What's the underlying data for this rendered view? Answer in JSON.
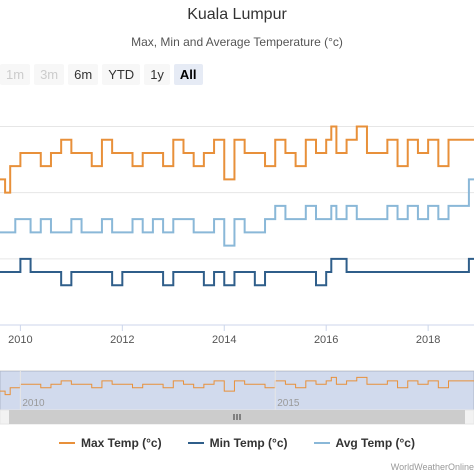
{
  "title": "Kuala Lumpur",
  "subtitle": "Max, Min and Average Temperature (°c)",
  "range_selector": {
    "buttons": [
      {
        "label": "1m",
        "state": "disabled"
      },
      {
        "label": "3m",
        "state": "disabled"
      },
      {
        "label": "6m",
        "state": "normal"
      },
      {
        "label": "YTD",
        "state": "normal"
      },
      {
        "label": "1y",
        "state": "normal"
      },
      {
        "label": "All",
        "state": "selected"
      }
    ]
  },
  "navigator": {
    "labels": [
      "2010",
      "2015"
    ]
  },
  "credit": "WorldWeatherOnline",
  "chart_data": {
    "type": "line",
    "title": "Kuala Lumpur",
    "subtitle": "Max, Min and Average Temperature (°c)",
    "x_ticks": [
      "2010",
      "2012",
      "2014",
      "2016",
      "2018"
    ],
    "xlim": [
      2009.6,
      2018.9
    ],
    "ylim": [
      20,
      37
    ],
    "grid": "horizontal",
    "legend_position": "bottom",
    "colors": {
      "max": "#e8903a",
      "min": "#2f5e8a",
      "avg": "#8ab8d8"
    },
    "x": [
      2009.6,
      2009.7,
      2009.8,
      2009.9,
      2010.0,
      2010.2,
      2010.4,
      2010.6,
      2010.8,
      2011.0,
      2011.2,
      2011.4,
      2011.6,
      2011.8,
      2012.0,
      2012.2,
      2012.4,
      2012.6,
      2012.8,
      2013.0,
      2013.2,
      2013.4,
      2013.6,
      2013.8,
      2014.0,
      2014.2,
      2014.4,
      2014.6,
      2014.8,
      2015.0,
      2015.2,
      2015.4,
      2015.6,
      2015.8,
      2016.0,
      2016.1,
      2016.2,
      2016.4,
      2016.6,
      2016.8,
      2017.0,
      2017.2,
      2017.4,
      2017.6,
      2017.8,
      2018.0,
      2018.2,
      2018.4,
      2018.6,
      2018.8,
      2018.9
    ],
    "series": [
      {
        "name": "Max Temp (°c)",
        "key": "max",
        "values": [
          31,
          30,
          32,
          32,
          33,
          33,
          32,
          33,
          34,
          33,
          33,
          32,
          34,
          33,
          33,
          32,
          33,
          33,
          32,
          34,
          33,
          32,
          33,
          34,
          31,
          34,
          33,
          33,
          32,
          34,
          33,
          32,
          34,
          33,
          34,
          35,
          33,
          34,
          35,
          33,
          33,
          34,
          32,
          34,
          33,
          34,
          32,
          34,
          34,
          34,
          34
        ]
      },
      {
        "name": "Min Temp (°c)",
        "key": "min",
        "values": [
          24,
          24,
          24,
          24,
          25,
          24,
          24,
          24,
          23,
          24,
          24,
          24,
          24,
          23,
          24,
          24,
          24,
          24,
          23,
          24,
          24,
          24,
          23,
          24,
          23,
          24,
          24,
          23,
          24,
          24,
          24,
          24,
          24,
          23,
          24,
          25,
          25,
          24,
          24,
          24,
          24,
          24,
          24,
          24,
          24,
          24,
          24,
          24,
          24,
          25,
          25
        ]
      },
      {
        "name": "Avg Temp (°c)",
        "key": "avg",
        "values": [
          27,
          27,
          27,
          28,
          28,
          27,
          28,
          27,
          27,
          28,
          27,
          27,
          28,
          27,
          27,
          28,
          27,
          28,
          27,
          28,
          28,
          27,
          27,
          28,
          26,
          28,
          27,
          27,
          28,
          29,
          28,
          28,
          29,
          28,
          28,
          29,
          28,
          29,
          28,
          28,
          28,
          29,
          28,
          29,
          28,
          29,
          28,
          29,
          29,
          31,
          31
        ]
      }
    ]
  }
}
